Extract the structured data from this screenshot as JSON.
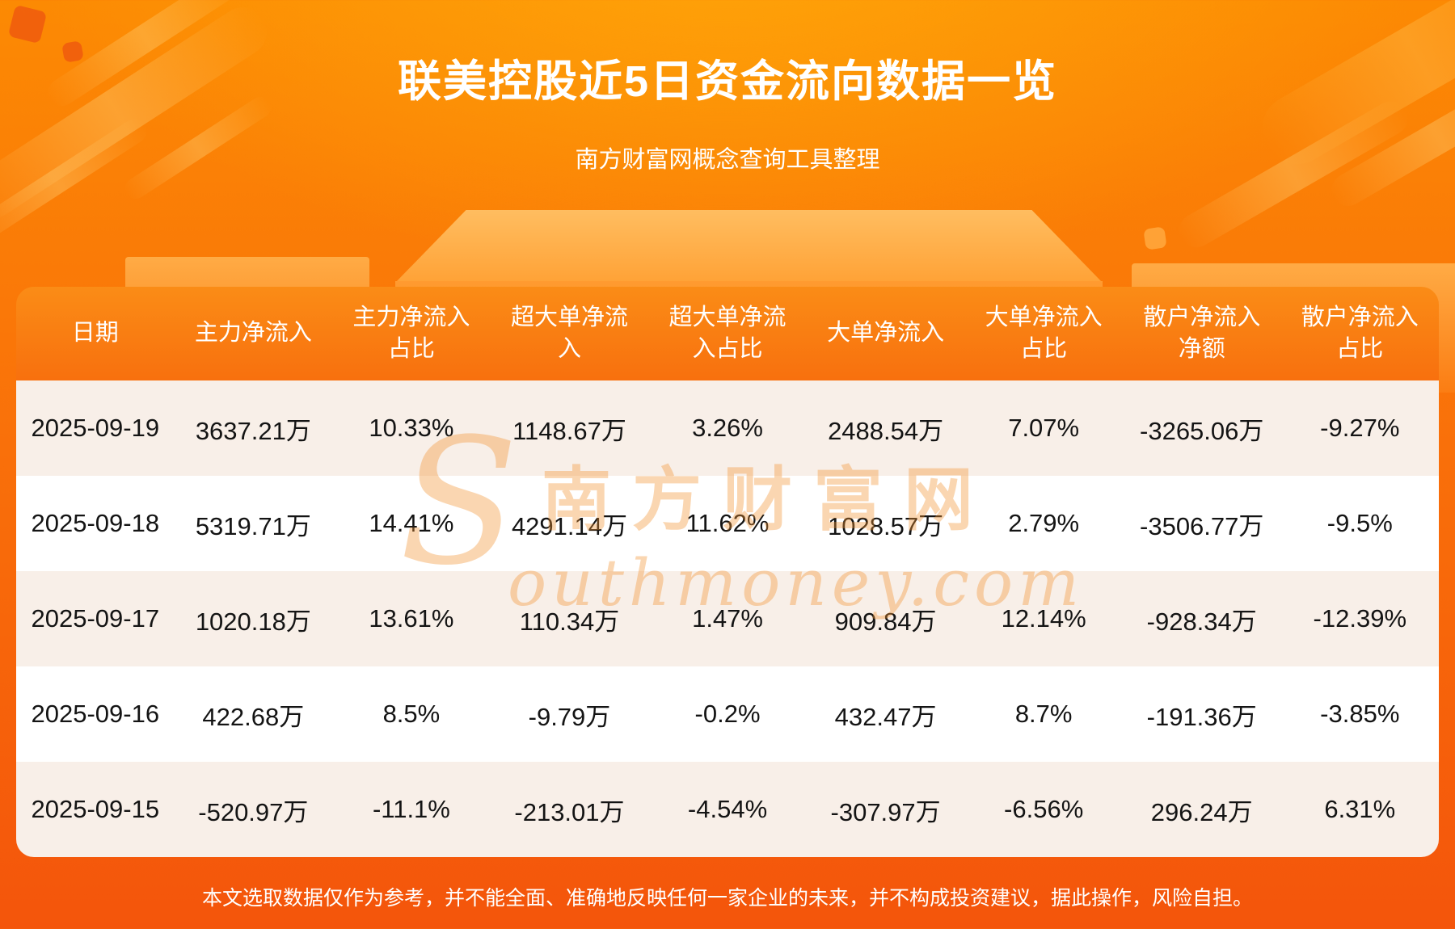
{
  "page": {
    "title": "联美控股近5日资金流向数据一览",
    "subtitle": "南方财富网概念查询工具整理",
    "disclaimer": "本文选取数据仅作为参考，并不能全面、准确地反映任何一家企业的未来，并不构成投资建议，据此操作，风险自担。",
    "watermark": {
      "initial": "S",
      "cn": "南方财富网",
      "en": "outhmoney.com"
    }
  },
  "colors": {
    "background_top": "#fc8a03",
    "background_bottom": "#f4550b",
    "table_header": "#f8700e",
    "row_odd": "#f8efe8",
    "row_even": "#ffffff",
    "text_dark": "#141414",
    "text_white": "#ffffff",
    "watermark": "#f39432"
  },
  "chart_data": {
    "type": "table",
    "title": "联美控股近5日资金流向数据一览",
    "subtitle": "南方财富网概念查询工具整理",
    "columns": [
      "日期",
      "主力净流入",
      "主力净流入占比",
      "超大单净流入",
      "超大单净流入占比",
      "大单净流入",
      "大单净流入占比",
      "散户净流入净额",
      "散户净流入占比"
    ],
    "column_labels": [
      "日期",
      "主力净流入",
      "主力净流入\n占比",
      "超大单净流\n入",
      "超大单净流\n入占比",
      "大单净流入",
      "大单净流入\n占比",
      "散户净流入\n净额",
      "散户净流入\n占比"
    ],
    "rows": [
      [
        "2025-09-19",
        "3637.21万",
        "10.33%",
        "1148.67万",
        "3.26%",
        "2488.54万",
        "7.07%",
        "-3265.06万",
        "-9.27%"
      ],
      [
        "2025-09-18",
        "5319.71万",
        "14.41%",
        "4291.14万",
        "11.62%",
        "1028.57万",
        "2.79%",
        "-3506.77万",
        "-9.5%"
      ],
      [
        "2025-09-17",
        "1020.18万",
        "13.61%",
        "110.34万",
        "1.47%",
        "909.84万",
        "12.14%",
        "-928.34万",
        "-12.39%"
      ],
      [
        "2025-09-16",
        "422.68万",
        "8.5%",
        "-9.79万",
        "-0.2%",
        "432.47万",
        "8.7%",
        "-191.36万",
        "-3.85%"
      ],
      [
        "2025-09-15",
        "-520.97万",
        "-11.1%",
        "-213.01万",
        "-4.54%",
        "-307.97万",
        "-6.56%",
        "296.24万",
        "6.31%"
      ]
    ]
  }
}
